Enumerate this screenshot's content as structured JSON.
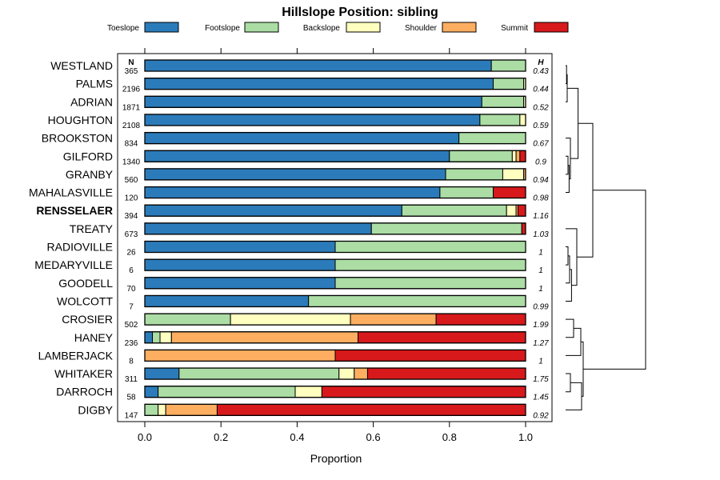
{
  "chart_data": {
    "type": "bar",
    "orientation": "horizontal",
    "stacked": true,
    "title": "Hillslope Position: sibling",
    "xlabel": "Proportion",
    "ylabel": "",
    "xlim": [
      0,
      1
    ],
    "x_ticks": [
      0.0,
      0.2,
      0.4,
      0.6,
      0.8,
      1.0
    ],
    "x_tick_labels": [
      "0.0",
      "0.2",
      "0.4",
      "0.6",
      "0.8",
      "1.0"
    ],
    "n_header": "N",
    "h_header": "H",
    "legend_position": "top",
    "series": [
      {
        "name": "Toeslope",
        "color": "#2b7bba"
      },
      {
        "name": "Footslope",
        "color": "#abdda4"
      },
      {
        "name": "Backslope",
        "color": "#ffffbf"
      },
      {
        "name": "Shoulder",
        "color": "#fdae61"
      },
      {
        "name": "Summit",
        "color": "#d7191c"
      }
    ],
    "rows": [
      {
        "name": "WESTLAND",
        "n": "365",
        "h": "0.43",
        "values": [
          0.91,
          0.09,
          0,
          0,
          0
        ]
      },
      {
        "name": "PALMS",
        "n": "2196",
        "h": "0.44",
        "values": [
          0.915,
          0.08,
          0.005,
          0,
          0
        ]
      },
      {
        "name": "ADRIAN",
        "n": "1871",
        "h": "0.52",
        "values": [
          0.885,
          0.11,
          0.005,
          0,
          0
        ]
      },
      {
        "name": "HOUGHTON",
        "n": "2108",
        "h": "0.59",
        "values": [
          0.88,
          0.105,
          0.015,
          0,
          0
        ]
      },
      {
        "name": "BROOKSTON",
        "n": "834",
        "h": "0.67",
        "values": [
          0.825,
          0.175,
          0,
          0,
          0
        ]
      },
      {
        "name": "GILFORD",
        "n": "1340",
        "h": "0.9",
        "values": [
          0.8,
          0.165,
          0.01,
          0.01,
          0.015
        ]
      },
      {
        "name": "GRANBY",
        "n": "560",
        "h": "0.94",
        "values": [
          0.79,
          0.15,
          0.055,
          0.005,
          0
        ]
      },
      {
        "name": "MAHALASVILLE",
        "n": "120",
        "h": "0.98",
        "values": [
          0.775,
          0.14,
          0,
          0,
          0.085
        ]
      },
      {
        "name": "RENSSELAER",
        "n": "394",
        "h": "1.16",
        "bold": true,
        "values": [
          0.675,
          0.275,
          0.025,
          0.005,
          0.02
        ]
      },
      {
        "name": "TREATY",
        "n": "673",
        "h": "1.03",
        "values": [
          0.595,
          0.395,
          0,
          0,
          0.01
        ]
      },
      {
        "name": "RADIOVILLE",
        "n": "26",
        "h": "1",
        "values": [
          0.5,
          0.5,
          0,
          0,
          0
        ]
      },
      {
        "name": "MEDARYVILLE",
        "n": "6",
        "h": "1",
        "values": [
          0.5,
          0.5,
          0,
          0,
          0
        ]
      },
      {
        "name": "GOODELL",
        "n": "70",
        "h": "1",
        "values": [
          0.5,
          0.5,
          0,
          0,
          0
        ]
      },
      {
        "name": "WOLCOTT",
        "n": "7",
        "h": "0.99",
        "values": [
          0.43,
          0.57,
          0,
          0,
          0
        ]
      },
      {
        "name": "CROSIER",
        "n": "502",
        "h": "1.99",
        "values": [
          0,
          0.225,
          0.315,
          0.225,
          0.235
        ]
      },
      {
        "name": "HANEY",
        "n": "236",
        "h": "1.27",
        "values": [
          0.02,
          0.02,
          0.03,
          0.49,
          0.44
        ]
      },
      {
        "name": "LAMBERJACK",
        "n": "8",
        "h": "1",
        "values": [
          0,
          0,
          0,
          0.5,
          0.5
        ]
      },
      {
        "name": "WHITAKER",
        "n": "311",
        "h": "1.75",
        "values": [
          0.09,
          0.42,
          0.04,
          0.035,
          0.415
        ]
      },
      {
        "name": "DARROCH",
        "n": "58",
        "h": "1.45",
        "values": [
          0.035,
          0.36,
          0.07,
          0,
          0.535
        ]
      },
      {
        "name": "DIGBY",
        "n": "147",
        "h": "0.92",
        "values": [
          0,
          0.035,
          0.02,
          0.135,
          0.81
        ]
      }
    ],
    "dendrogram_merges": [
      [
        0,
        1,
        0.006
      ],
      [
        -1,
        2,
        0.01
      ],
      [
        5,
        6,
        0.015
      ],
      [
        -3,
        7,
        0.022
      ],
      [
        4,
        -4,
        0.03
      ],
      [
        -2,
        -5,
        0.078
      ],
      [
        10,
        11,
        0.015
      ],
      [
        -7,
        12,
        0.025
      ],
      [
        -8,
        13,
        0.037
      ],
      [
        9,
        -9,
        0.07
      ],
      [
        -6,
        -10,
        0.17
      ],
      [
        14,
        15,
        0.05
      ],
      [
        -12,
        16,
        0.095
      ],
      [
        17,
        18,
        0.03
      ],
      [
        -14,
        19,
        0.1
      ],
      [
        -13,
        -15,
        0.11
      ],
      [
        -11,
        -16,
        0.5
      ]
    ]
  }
}
